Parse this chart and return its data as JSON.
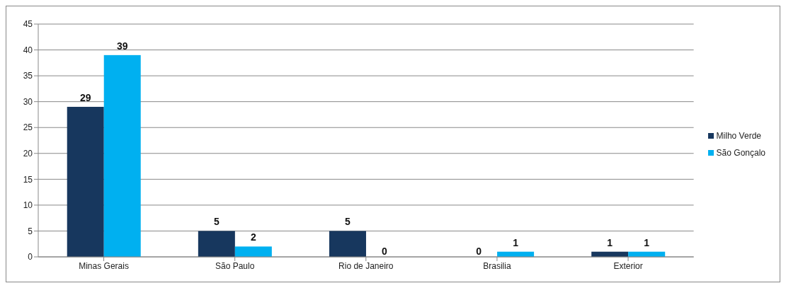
{
  "chart_data": {
    "type": "bar",
    "categories": [
      "Minas Gerais",
      "São Paulo",
      "Rio de Janeiro",
      "Brasilia",
      "Exterior"
    ],
    "series": [
      {
        "name": "Milho Verde",
        "color": "#17375e",
        "values": [
          29,
          5,
          5,
          0,
          1
        ]
      },
      {
        "name": "São Gonçalo",
        "color": "#00b0f0",
        "values": [
          39,
          2,
          0,
          1,
          1
        ]
      }
    ],
    "ylim": [
      0,
      45
    ],
    "yticks": [
      0,
      5,
      10,
      15,
      20,
      25,
      30,
      35,
      40,
      45
    ],
    "grid": "y",
    "legend": "right",
    "data_labels": true
  }
}
